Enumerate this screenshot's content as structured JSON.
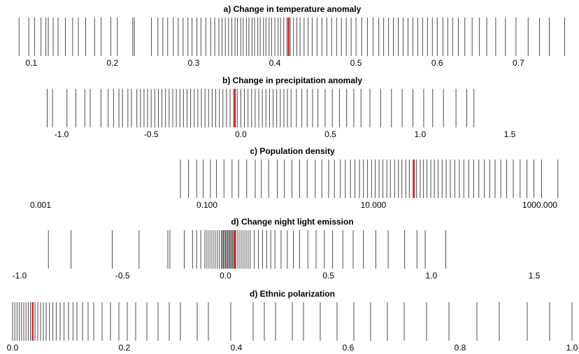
{
  "chart_data": [
    {
      "type": "rug",
      "title": "a) Change in temperature anomaly",
      "color": "#000000",
      "marker_color": "#d62728",
      "xlim": [
        0.077,
        0.766
      ],
      "xticks": [
        0.1,
        0.2,
        0.3,
        0.4,
        0.5,
        0.6,
        0.7
      ],
      "marker": 0.417,
      "values": [
        0.085,
        0.097,
        0.104,
        0.112,
        0.118,
        0.121,
        0.127,
        0.133,
        0.142,
        0.151,
        0.158,
        0.167,
        0.178,
        0.186,
        0.198,
        0.206,
        0.225,
        0.227,
        0.248,
        0.256,
        0.262,
        0.268,
        0.275,
        0.281,
        0.287,
        0.293,
        0.298,
        0.304,
        0.309,
        0.315,
        0.321,
        0.326,
        0.331,
        0.335,
        0.339,
        0.343,
        0.347,
        0.351,
        0.354,
        0.358,
        0.361,
        0.365,
        0.368,
        0.372,
        0.375,
        0.379,
        0.382,
        0.386,
        0.389,
        0.393,
        0.396,
        0.4,
        0.404,
        0.407,
        0.411,
        0.415,
        0.419,
        0.423,
        0.427,
        0.431,
        0.436,
        0.441,
        0.446,
        0.452,
        0.458,
        0.464,
        0.47,
        0.476,
        0.482,
        0.488,
        0.494,
        0.5,
        0.507,
        0.514,
        0.521,
        0.528,
        0.534,
        0.54,
        0.546,
        0.552,
        0.558,
        0.564,
        0.57,
        0.576,
        0.582,
        0.588,
        0.594,
        0.6,
        0.607,
        0.613,
        0.619,
        0.626,
        0.634,
        0.643,
        0.652,
        0.661,
        0.672,
        0.684,
        0.697,
        0.712,
        0.726,
        0.738,
        0.757
      ]
    },
    {
      "type": "rug",
      "title": "b) Change in precipitation anomaly",
      "color": "#000000",
      "marker_color": "#d62728",
      "xlim": [
        -1.273,
        1.847
      ],
      "xticks": [
        {
          "value": -1,
          "label": "-1.0"
        },
        -0.5,
        {
          "value": 0,
          "label": "0.0"
        },
        0.5,
        {
          "value": 1,
          "label": "1.0"
        },
        1.5
      ],
      "marker": -0.033,
      "values": [
        -1.08,
        -1.05,
        -0.97,
        -0.92,
        -0.87,
        -0.84,
        -0.78,
        -0.74,
        -0.71,
        -0.68,
        -0.66,
        -0.63,
        -0.61,
        -0.58,
        -0.56,
        -0.54,
        -0.52,
        -0.5,
        -0.48,
        -0.46,
        -0.44,
        -0.42,
        -0.4,
        -0.38,
        -0.36,
        -0.34,
        -0.32,
        -0.3,
        -0.28,
        -0.26,
        -0.24,
        -0.22,
        -0.2,
        -0.18,
        -0.16,
        -0.14,
        -0.12,
        -0.1,
        -0.08,
        -0.06,
        -0.04,
        -0.02,
        0.0,
        0.02,
        0.04,
        0.06,
        0.08,
        0.1,
        0.12,
        0.14,
        0.16,
        0.18,
        0.2,
        0.22,
        0.24,
        0.26,
        0.28,
        0.31,
        0.34,
        0.37,
        0.4,
        0.43,
        0.47,
        0.51,
        0.55,
        0.59,
        0.63,
        0.67,
        0.72,
        0.78,
        0.84,
        0.9,
        0.96,
        1.02,
        1.07,
        1.13,
        1.2,
        1.26,
        1.3
      ]
    },
    {
      "type": "rug",
      "title": "c) Population density",
      "color": "#000000",
      "marker_color": "#d62728",
      "log_scale": true,
      "xlim": [
        0.000461,
        2438
      ],
      "xticks": [
        {
          "value": 0.001,
          "label": "0.001"
        },
        {
          "value": 0.1,
          "label": "0.100"
        },
        {
          "value": 10,
          "label": "10.000"
        },
        {
          "value": 1000,
          "label": "1000.000"
        }
      ],
      "marker": 30.7,
      "values": [
        0.048,
        0.06,
        0.075,
        0.09,
        0.11,
        0.13,
        0.16,
        0.2,
        0.24,
        0.3,
        0.38,
        0.45,
        0.55,
        0.7,
        0.85,
        1.05,
        1.3,
        1.6,
        2,
        2.4,
        2.9,
        3.4,
        4,
        4.6,
        5.3,
        6,
        6.8,
        7.6,
        8.5,
        9.5,
        10.5,
        11.7,
        13,
        14.5,
        16,
        18,
        20,
        22,
        24.5,
        27,
        30,
        33,
        36.5,
        40,
        44,
        49,
        54,
        60,
        67,
        75,
        84,
        95,
        108,
        122,
        140,
        160,
        185,
        215,
        250,
        290,
        340,
        400,
        480,
        580,
        700,
        850,
        1050,
        1650
      ]
    },
    {
      "type": "rug",
      "title": "d) Change night light emission",
      "color": "#000000",
      "marker_color": "#d62728",
      "xlim": [
        -1.034,
        1.683
      ],
      "xticks": [
        {
          "value": -1,
          "label": "-1.0"
        },
        -0.5,
        {
          "value": 0,
          "label": "0.0"
        },
        0.5,
        {
          "value": 1,
          "label": "1.0"
        },
        1.5
      ],
      "marker": 0.046,
      "values": [
        -0.86,
        -0.75,
        -0.55,
        -0.42,
        -0.28,
        -0.27,
        -0.2,
        -0.16,
        -0.14,
        -0.12,
        -0.1,
        -0.09,
        -0.08,
        -0.07,
        -0.06,
        -0.05,
        -0.04,
        -0.03,
        -0.02,
        -0.015,
        -0.01,
        -0.005,
        0,
        0.005,
        0.01,
        0.015,
        0.02,
        0.025,
        0.03,
        0.035,
        0.04,
        0.05,
        0.06,
        0.07,
        0.08,
        0.09,
        0.1,
        0.11,
        0.12,
        0.14,
        0.16,
        0.18,
        0.2,
        0.22,
        0.24,
        0.27,
        0.3,
        0.33,
        0.36,
        0.4,
        0.44,
        0.48,
        0.52,
        0.57,
        0.62,
        0.67,
        0.73,
        0.79,
        0.87,
        0.93,
        0.97,
        1.07
      ]
    },
    {
      "type": "rug",
      "title": "d) Ethnic polarization",
      "color": "#000000",
      "marker_color": "#d62728",
      "xlim": [
        0,
        1
      ],
      "xticks": [
        {
          "value": 0,
          "label": "0.0"
        },
        0.2,
        0.4,
        0.6,
        0.8,
        {
          "value": 1,
          "label": "1.0"
        }
      ],
      "marker": 0.036,
      "values": [
        0,
        0.004,
        0.008,
        0.012,
        0.016,
        0.02,
        0.024,
        0.028,
        0.032,
        0.036,
        0.04,
        0.045,
        0.05,
        0.055,
        0.06,
        0.066,
        0.072,
        0.078,
        0.085,
        0.092,
        0.1,
        0.108,
        0.115,
        0.125,
        0.135,
        0.145,
        0.16,
        0.175,
        0.19,
        0.205,
        0.22,
        0.24,
        0.26,
        0.28,
        0.3,
        0.33,
        0.35,
        0.39,
        0.43,
        0.45,
        0.47,
        0.5,
        0.52,
        0.55,
        0.58,
        0.61,
        0.64,
        0.67,
        0.7,
        0.74,
        0.78,
        0.83,
        0.87,
        0.92,
        0.96,
        1.0
      ]
    }
  ]
}
